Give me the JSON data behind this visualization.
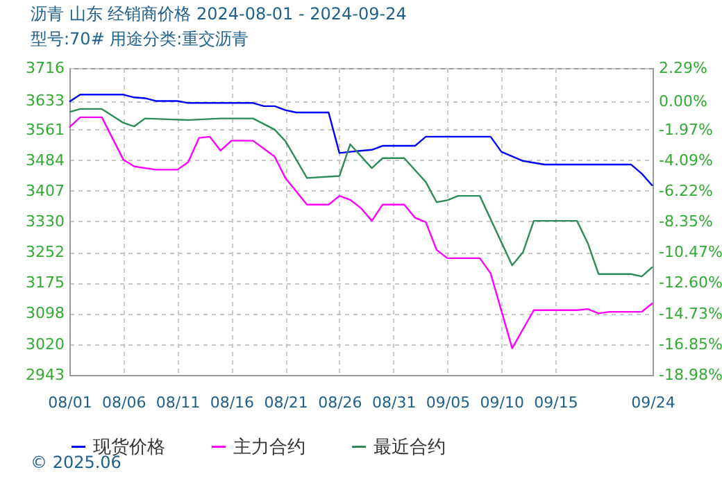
{
  "chart_data": {
    "type": "line",
    "title": "沥青  山东  经销商价格  2024-08-01 - 2024-09-24",
    "subtitle": "型号:70#  用途分类:重交沥青",
    "xlim": [
      "2024-08-01",
      "2024-09-24"
    ],
    "xticks": [
      {
        "value": "2024-08-01",
        "label": "08/01"
      },
      {
        "value": "2024-08-06",
        "label": "08/06"
      },
      {
        "value": "2024-08-11",
        "label": "08/11"
      },
      {
        "value": "2024-08-16",
        "label": "08/16"
      },
      {
        "value": "2024-08-21",
        "label": "08/21"
      },
      {
        "value": "2024-08-26",
        "label": "08/26"
      },
      {
        "value": "2024-08-31",
        "label": "08/31"
      },
      {
        "value": "2024-09-05",
        "label": "09/05"
      },
      {
        "value": "2024-09-10",
        "label": "09/10"
      },
      {
        "value": "2024-09-15",
        "label": "09/15"
      },
      {
        "value": "2024-09-24",
        "label": "09/24"
      }
    ],
    "ylim": [
      2943,
      3716
    ],
    "yticks": [
      2943,
      3020,
      3098,
      3175,
      3252,
      3330,
      3407,
      3484,
      3561,
      3633,
      3716
    ],
    "y2lim": [
      -18.98,
      2.29
    ],
    "y2ticks": [
      {
        "value": -18.98,
        "label": "-18.98%"
      },
      {
        "value": -16.85,
        "label": "-16.85%"
      },
      {
        "value": -14.73,
        "label": "-14.73%"
      },
      {
        "value": -12.6,
        "label": "-12.60%"
      },
      {
        "value": -10.47,
        "label": "-10.47%"
      },
      {
        "value": -8.35,
        "label": "-8.35%"
      },
      {
        "value": -6.22,
        "label": "-6.22%"
      },
      {
        "value": -4.09,
        "label": "-4.09%"
      },
      {
        "value": -1.97,
        "label": "-1.97%"
      },
      {
        "value": 0,
        "label": "0.00%"
      },
      {
        "value": 2.29,
        "label": "2.29%"
      }
    ],
    "grid": true,
    "legend": "bottom",
    "line_style": "solid",
    "annotations": [
      "© 2025.06"
    ],
    "series": [
      {
        "name": "现货价格",
        "color": "#0000ff",
        "x": [
          "2024-08-01",
          "2024-08-02",
          "2024-08-06",
          "2024-08-07",
          "2024-08-08",
          "2024-08-09",
          "2024-08-11",
          "2024-08-12",
          "2024-08-18",
          "2024-08-19",
          "2024-08-20",
          "2024-08-21",
          "2024-08-22",
          "2024-08-25",
          "2024-08-26",
          "2024-08-27",
          "2024-08-29",
          "2024-08-30",
          "2024-09-02",
          "2024-09-03",
          "2024-09-09",
          "2024-09-10",
          "2024-09-12",
          "2024-09-14",
          "2024-09-22",
          "2024-09-23",
          "2024-09-24"
        ],
        "values": [
          3631,
          3649,
          3649,
          3642,
          3640,
          3633,
          3633,
          3628,
          3628,
          3620,
          3620,
          3610,
          3604,
          3604,
          3502,
          3505,
          3510,
          3520,
          3520,
          3543,
          3543,
          3505,
          3482,
          3473,
          3473,
          3450,
          3419
        ]
      },
      {
        "name": "主力合约",
        "color": "#ff00ff",
        "x": [
          "2024-08-01",
          "2024-08-02",
          "2024-08-04",
          "2024-08-06",
          "2024-08-07",
          "2024-08-09",
          "2024-08-11",
          "2024-08-12",
          "2024-08-13",
          "2024-08-14",
          "2024-08-15",
          "2024-08-16",
          "2024-08-18",
          "2024-08-20",
          "2024-08-21",
          "2024-08-23",
          "2024-08-25",
          "2024-08-26",
          "2024-08-27",
          "2024-08-28",
          "2024-08-29",
          "2024-08-30",
          "2024-09-01",
          "2024-09-02",
          "2024-09-03",
          "2024-09-04",
          "2024-09-05",
          "2024-09-08",
          "2024-09-09",
          "2024-09-11",
          "2024-09-13",
          "2024-09-17",
          "2024-09-18",
          "2024-09-19",
          "2024-09-20",
          "2024-09-23",
          "2024-09-24"
        ],
        "values": [
          3567,
          3592,
          3592,
          3485,
          3468,
          3460,
          3460,
          3479,
          3540,
          3543,
          3508,
          3533,
          3533,
          3493,
          3439,
          3372,
          3372,
          3394,
          3384,
          3363,
          3331,
          3372,
          3372,
          3339,
          3328,
          3258,
          3237,
          3237,
          3199,
          3010,
          3106,
          3106,
          3109,
          3098,
          3102,
          3102,
          3124
        ]
      },
      {
        "name": "最近合约",
        "color": "#2e8b57",
        "x": [
          "2024-08-01",
          "2024-08-02",
          "2024-08-04",
          "2024-08-06",
          "2024-08-07",
          "2024-08-08",
          "2024-08-12",
          "2024-08-15",
          "2024-08-18",
          "2024-08-20",
          "2024-08-21",
          "2024-08-23",
          "2024-08-26",
          "2024-08-27",
          "2024-08-29",
          "2024-08-30",
          "2024-09-01",
          "2024-09-03",
          "2024-09-04",
          "2024-09-05",
          "2024-09-06",
          "2024-09-08",
          "2024-09-11",
          "2024-09-12",
          "2024-09-13",
          "2024-09-17",
          "2024-09-18",
          "2024-09-19",
          "2024-09-22",
          "2024-09-23",
          "2024-09-24"
        ],
        "values": [
          3605,
          3613,
          3613,
          3578,
          3569,
          3589,
          3585,
          3589,
          3589,
          3561,
          3532,
          3439,
          3444,
          3524,
          3464,
          3489,
          3489,
          3429,
          3378,
          3383,
          3394,
          3394,
          3219,
          3252,
          3331,
          3331,
          3275,
          3197,
          3197,
          3191,
          3215
        ]
      }
    ]
  }
}
